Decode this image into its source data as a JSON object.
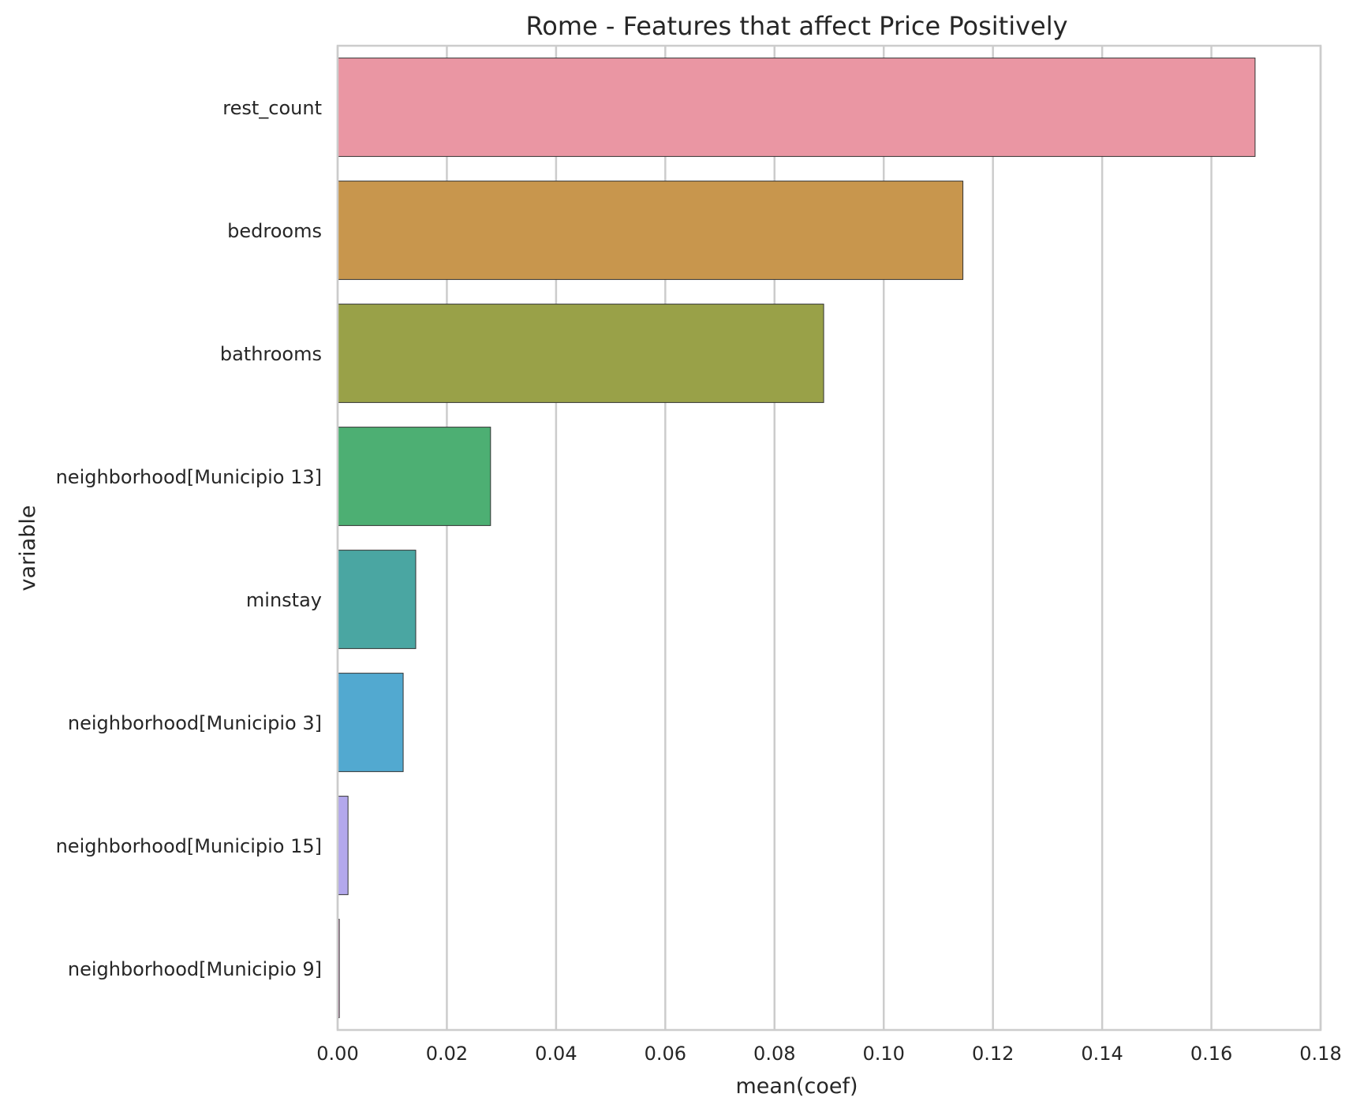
{
  "chart_data": {
    "type": "bar",
    "orientation": "horizontal",
    "title": "Rome - Features that affect Price Positively",
    "xlabel": "mean(coef)",
    "ylabel": "variable",
    "xlim": [
      0,
      0.18
    ],
    "xticks": [
      0,
      0.02,
      0.04,
      0.06,
      0.08,
      0.1,
      0.12,
      0.14,
      0.16,
      0.18
    ],
    "xtick_labels": [
      "0.00",
      "0.02",
      "0.04",
      "0.06",
      "0.08",
      "0.10",
      "0.12",
      "0.14",
      "0.16",
      "0.18"
    ],
    "grid": "vertical",
    "categories": [
      "rest_count",
      "bedrooms",
      "bathrooms",
      "neighborhood[Municipio 13]",
      "minstay",
      "neighborhood[Municipio 3]",
      "neighborhood[Municipio 15]",
      "neighborhood[Municipio 9]"
    ],
    "values": [
      0.168,
      0.1145,
      0.089,
      0.028,
      0.0143,
      0.012,
      0.0019,
      0.0003
    ],
    "colors": [
      "#ea96a3",
      "#c8964d",
      "#99a148",
      "#4daf73",
      "#4aa6a2",
      "#52a9d0",
      "#b3a8ec",
      "#e68fc9"
    ]
  }
}
